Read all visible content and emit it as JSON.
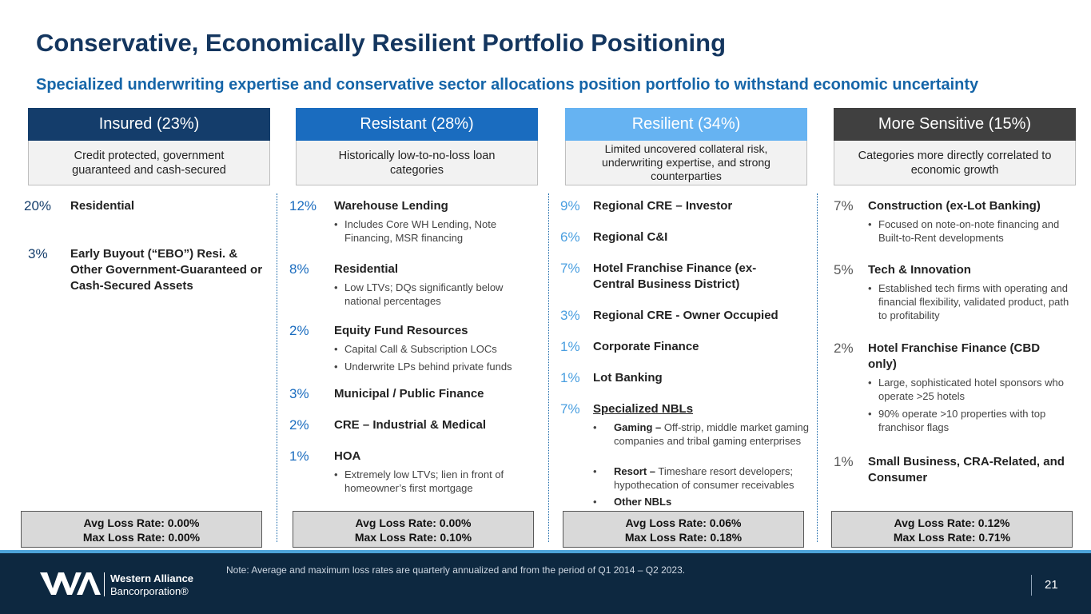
{
  "title": "Conservative, Economically Resilient Portfolio Positioning",
  "subtitle": "Specialized underwriting expertise and conservative sector allocations position portfolio to withstand economic uncertainty",
  "colors": {
    "title": "#14365f",
    "insured": "#143d6b",
    "resistant": "#1a6cbf",
    "resilient": "#66b3f2",
    "sensitive": "#404040",
    "accent": "#1565a8"
  },
  "columns": [
    {
      "header": "Insured (23%)",
      "description": "Credit protected, government guaranteed and cash-secured",
      "items": [
        {
          "pct": "20%",
          "label": "Residential",
          "bullets": []
        },
        {
          "pct": "3%",
          "label": "Early Buyout (“EBO”) Resi. & Other Government-Guaranteed or Cash-Secured Assets",
          "bullets": []
        }
      ],
      "avg_loss": "Avg Loss Rate: 0.00%",
      "max_loss": "Max Loss Rate: 0.00%"
    },
    {
      "header": "Resistant (28%)",
      "description": "Historically low-to-no-loss loan categories",
      "items": [
        {
          "pct": "12%",
          "label": "Warehouse Lending",
          "bullets": [
            "Includes Core WH Lending, Note Financing, MSR financing"
          ]
        },
        {
          "pct": "8%",
          "label": "Residential",
          "bullets": [
            "Low LTVs; DQs significantly below national percentages"
          ]
        },
        {
          "pct": "2%",
          "label": "Equity Fund Resources",
          "bullets": [
            "Capital Call & Subscription LOCs",
            "Underwrite LPs behind private funds"
          ]
        },
        {
          "pct": "3%",
          "label": "Municipal / Public Finance",
          "bullets": []
        },
        {
          "pct": "2%",
          "label": "CRE – Industrial & Medical",
          "bullets": []
        },
        {
          "pct": "1%",
          "label": "HOA",
          "bullets": [
            "Extremely low LTVs; lien in front of homeowner’s first mortgage"
          ]
        }
      ],
      "avg_loss": "Avg Loss Rate: 0.00%",
      "max_loss": "Max Loss Rate: 0.10%"
    },
    {
      "header": "Resilient (34%)",
      "description": "Limited uncovered collateral risk, underwriting expertise, and strong counterparties",
      "items": [
        {
          "pct": "9%",
          "label": "Regional CRE – Investor",
          "bullets": []
        },
        {
          "pct": "6%",
          "label": "Regional C&I",
          "bullets": []
        },
        {
          "pct": "7%",
          "label": "Hotel Franchise Finance (ex-Central Business District)",
          "bullets": []
        },
        {
          "pct": "3%",
          "label": "Regional CRE - Owner Occupied",
          "bullets": []
        },
        {
          "pct": "1%",
          "label": "Corporate Finance",
          "bullets": []
        },
        {
          "pct": "1%",
          "label": "Lot Banking",
          "bullets": []
        },
        {
          "pct": "7%",
          "label": "Specialized NBLs",
          "bullets": []
        }
      ],
      "nbl_bullets": [
        {
          "bold": "Gaming –",
          "text": " Off-strip, middle market gaming companies and tribal gaming enterprises"
        },
        {
          "bold": "Resort –",
          "text": " Timeshare resort developers; hypothecation of consumer receivables"
        },
        {
          "bold": "Other NBLs",
          "text": ""
        }
      ],
      "avg_loss": "Avg Loss Rate: 0.06%",
      "max_loss": "Max Loss Rate: 0.18%"
    },
    {
      "header": "More Sensitive (15%)",
      "description": "Categories more directly correlated to economic growth",
      "items": [
        {
          "pct": "7%",
          "label": "Construction (ex-Lot Banking)",
          "bullets": [
            "Focused on note-on-note financing and Built-to-Rent developments"
          ]
        },
        {
          "pct": "5%",
          "label": "Tech & Innovation",
          "bullets": [
            "Established tech firms with operating and financial flexibility, validated product, path to profitability"
          ]
        },
        {
          "pct": "2%",
          "label": "Hotel Franchise Finance (CBD only)",
          "bullets": [
            "Large, sophisticated hotel sponsors who operate >25 hotels",
            "90% operate >10 properties with top franchisor flags"
          ]
        },
        {
          "pct": "1%",
          "label": "Small Business, CRA-Related, and Consumer",
          "bullets": []
        }
      ],
      "avg_loss": "Avg Loss Rate: 0.12%",
      "max_loss": "Max Loss Rate: 0.71%"
    }
  ],
  "footer": {
    "note": "Note: Average and maximum loss rates are quarterly annualized and from the period of Q1 2014 – Q2 2023.",
    "logo_name": "Western Alliance",
    "logo_sub": "Bancorporation®",
    "page": "21"
  }
}
